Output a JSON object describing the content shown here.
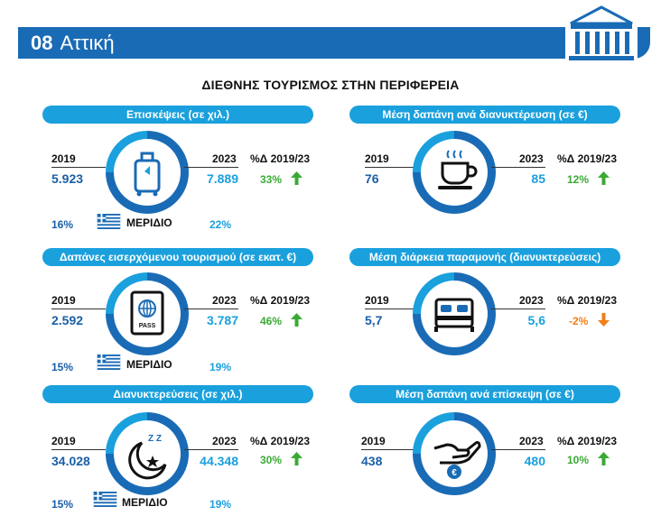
{
  "header": {
    "number": "08",
    "region": "Αττική"
  },
  "title": "ΔΙΕΘΝΗΣ ΤΟΥΡΙΣΜΟΣ ΣΤΗΝ ΠΕΡΙΦΕΡΕΙΑ",
  "colors": {
    "header": "#1a6bb5",
    "pill": "#1aa0dd",
    "dark_blue": "#1a5fa8",
    "up": "#3aaa35",
    "down": "#f07f1a"
  },
  "panels": [
    {
      "title": "Επισκέψεις (σε χιλ.)",
      "year_a": "2019",
      "value_a": "5.923",
      "year_b": "2023",
      "value_b": "7.889",
      "pct_label": "%Δ 2019/23",
      "pct": "33%",
      "trend": "up",
      "icon": "suitcase-icon",
      "share_a": "16%",
      "share_label": "ΜΕΡΙΔΙΟ",
      "share_b": "22%"
    },
    {
      "title": "Μέση δαπάνη ανά διανυκτέρευση (σε €)",
      "year_a": "2019",
      "value_a": "76",
      "year_b": "2023",
      "value_b": "85",
      "pct_label": "%Δ 2019/23",
      "pct": "12%",
      "trend": "up",
      "icon": "coffee-cup-icon"
    },
    {
      "title": "Δαπάνες εισερχόμενου τουρισμού (σε εκατ. €)",
      "year_a": "2019",
      "value_a": "2.592",
      "year_b": "2023",
      "value_b": "3.787",
      "pct_label": "%Δ 2019/23",
      "pct": "46%",
      "trend": "up",
      "icon": "passport-icon",
      "icon_text": "PASS",
      "share_a": "15%",
      "share_label": "ΜΕΡΙΔΙΟ",
      "share_b": "19%"
    },
    {
      "title": "Μέση διάρκεια παραμονής (διανυκτερεύσεις)",
      "year_a": "2019",
      "value_a": "5,7",
      "year_b": "2023",
      "value_b": "5,6",
      "pct_label": "%Δ 2019/23",
      "pct": "-2%",
      "trend": "down",
      "icon": "bed-icon"
    },
    {
      "title": "Διανυκτερεύσεις (σε χιλ.)",
      "year_a": "2019",
      "value_a": "34.028",
      "year_b": "2023",
      "value_b": "44.348",
      "pct_label": "%Δ 2019/23",
      "pct": "30%",
      "trend": "up",
      "icon": "moon-sleep-icon",
      "icon_text": "Z Z",
      "share_a": "15%",
      "share_label": "ΜΕΡΙΔΙΟ",
      "share_b": "19%"
    },
    {
      "title": "Μέση δαπάνη ανά επίσκεψη (σε €)",
      "year_a": "2019",
      "value_a": "438",
      "year_b": "2023",
      "value_b": "480",
      "pct_label": "%Δ 2019/23",
      "pct": "10%",
      "trend": "up",
      "icon": "hand-euro-icon",
      "icon_text": "€"
    }
  ]
}
